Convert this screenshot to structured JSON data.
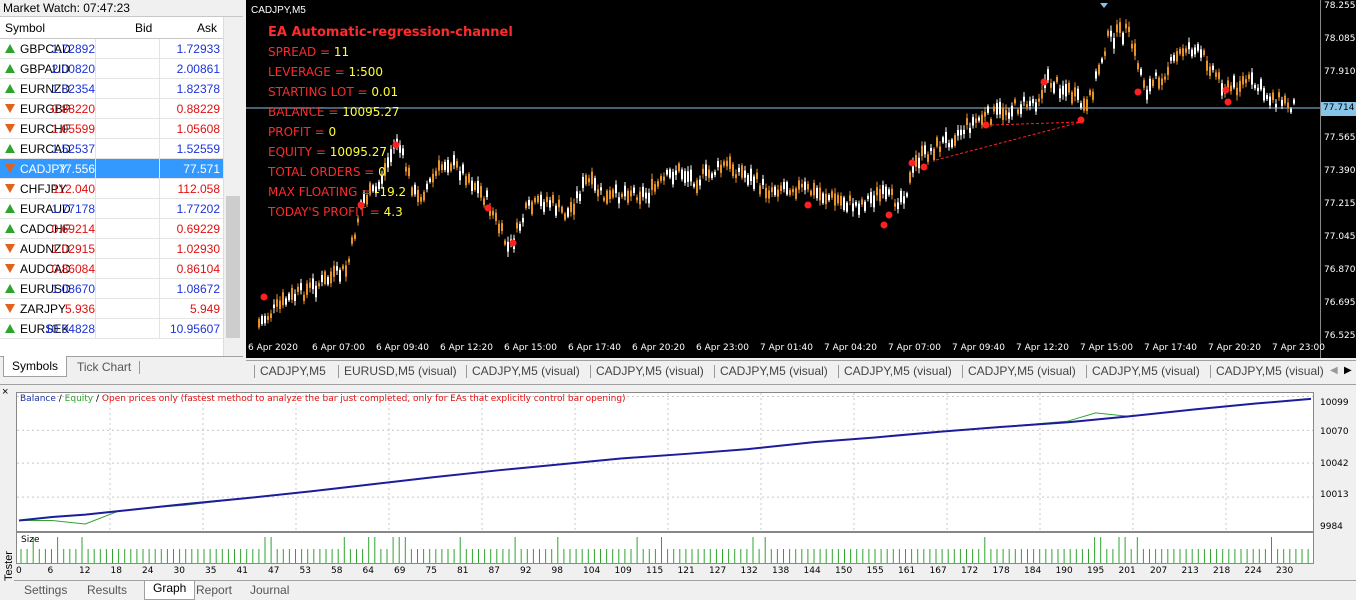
{
  "market_watch": {
    "title": "Market Watch: 07:47:23",
    "columns": [
      "Symbol",
      "Bid",
      "Ask"
    ],
    "rows": [
      {
        "symbol": "GBPCAD",
        "bid": "1.72892",
        "ask": "1.72933",
        "dir": "up",
        "color": "blue"
      },
      {
        "symbol": "GBPAUD",
        "bid": "2.00820",
        "ask": "2.00861",
        "dir": "up",
        "color": "blue"
      },
      {
        "symbol": "EURNZD",
        "bid": "1.82354",
        "ask": "1.82378",
        "dir": "up",
        "color": "blue"
      },
      {
        "symbol": "EURGBP",
        "bid": "0.88220",
        "ask": "0.88229",
        "dir": "down",
        "color": "red"
      },
      {
        "symbol": "EURCHF",
        "bid": "1.05599",
        "ask": "1.05608",
        "dir": "down",
        "color": "red"
      },
      {
        "symbol": "EURCAD",
        "bid": "1.52537",
        "ask": "1.52559",
        "dir": "up",
        "color": "blue"
      },
      {
        "symbol": "CADJPY",
        "bid": "77.556",
        "ask": "77.571",
        "dir": "down",
        "color": "sel"
      },
      {
        "symbol": "CHFJPY",
        "bid": "112.040",
        "ask": "112.058",
        "dir": "down",
        "color": "red"
      },
      {
        "symbol": "EURAUD",
        "bid": "1.77178",
        "ask": "1.77202",
        "dir": "up",
        "color": "blue"
      },
      {
        "symbol": "CADCHF",
        "bid": "0.69214",
        "ask": "0.69229",
        "dir": "up",
        "color": "red"
      },
      {
        "symbol": "AUDNZD",
        "bid": "1.02915",
        "ask": "1.02930",
        "dir": "down",
        "color": "red"
      },
      {
        "symbol": "AUDCAD",
        "bid": "0.86084",
        "ask": "0.86104",
        "dir": "down",
        "color": "red"
      },
      {
        "symbol": "EURUSD",
        "bid": "1.08670",
        "ask": "1.08672",
        "dir": "up",
        "color": "blue"
      },
      {
        "symbol": "ZARJPY",
        "bid": "5.936",
        "ask": "5.949",
        "dir": "down",
        "color": "red"
      },
      {
        "symbol": "EURSEK",
        "bid": "10.94828",
        "ask": "10.95607",
        "dir": "up",
        "color": "blue"
      }
    ],
    "tabs": [
      "Symbols",
      "Tick Chart"
    ]
  },
  "chart": {
    "label": "CADJPY,M5",
    "ea_title": "EA Automatic-regression-channel",
    "info": [
      {
        "k": "SPREAD = ",
        "v": "11"
      },
      {
        "k": "LEVERAGE = ",
        "v": "1:500"
      },
      {
        "k": "STARTING LOT = ",
        "v": "0.01"
      },
      {
        "k": "BALANCE = ",
        "v": "10095.27"
      },
      {
        "k": "PROFIT = ",
        "v": "0"
      },
      {
        "k": "EQUITY = ",
        "v": "10095.27"
      },
      {
        "k": "TOTAL ORDERS = ",
        "v": "0"
      },
      {
        "k": "MAX FLOATING = ",
        "v": "-19.2"
      },
      {
        "k": "TODAY'S PROFIT = ",
        "v": "4.3"
      }
    ],
    "price_ticks": [
      "78.255",
      "78.085",
      "77.910",
      "77.714",
      "77.565",
      "77.390",
      "77.215",
      "77.045",
      "76.870",
      "76.695",
      "76.525"
    ],
    "current_price": "77.714",
    "time_ticks": [
      "6 Apr 2020",
      "6 Apr 07:00",
      "6 Apr 09:40",
      "6 Apr 12:20",
      "6 Apr 15:00",
      "6 Apr 17:40",
      "6 Apr 20:20",
      "6 Apr 23:00",
      "7 Apr 01:40",
      "7 Apr 04:20",
      "7 Apr 07:00",
      "7 Apr 09:40",
      "7 Apr 12:20",
      "7 Apr 15:00",
      "7 Apr 17:40",
      "7 Apr 20:20",
      "7 Apr 23:00"
    ],
    "tabs": [
      "CADJPY,M5",
      "EURUSD,M5 (visual)",
      "CADJPY,M5 (visual)",
      "CADJPY,M5 (visual)",
      "CADJPY,M5 (visual)",
      "CADJPY,M5 (visual)",
      "CADJPY,M5 (visual)",
      "CADJPY,M5 (visual)",
      "CADJPY,M5 (visual)"
    ],
    "colors": {
      "bull": "#ffffff",
      "bear": "#e8922a",
      "marker": "#ff2020",
      "grid": "#87c5e8"
    }
  },
  "tester": {
    "side_label": "Tester",
    "close_label": "×",
    "legend": {
      "balance": "Balance",
      "sep1": " / ",
      "equity": "Equity",
      "sep2": " / ",
      "mode": "Open prices only (fastest method to analyze the bar just completed, only for EAs that explicitly control bar opening)"
    },
    "size_label": "Size",
    "y_ticks": [
      "10099",
      "10070",
      "10042",
      "10013",
      "9984"
    ],
    "x_ticks": [
      "0",
      "6",
      "12",
      "18",
      "24",
      "30",
      "35",
      "41",
      "47",
      "53",
      "58",
      "64",
      "69",
      "75",
      "81",
      "87",
      "92",
      "98",
      "104",
      "109",
      "115",
      "121",
      "127",
      "132",
      "138",
      "144",
      "150",
      "155",
      "161",
      "167",
      "172",
      "178",
      "184",
      "190",
      "195",
      "201",
      "207",
      "213",
      "218",
      "224",
      "230"
    ],
    "tabs": [
      "Settings",
      "Results",
      "Graph",
      "Report",
      "Journal"
    ],
    "active_tab": "Graph"
  },
  "chart_data": {
    "type": "line",
    "title": "",
    "xlabel": "",
    "ylabel": "",
    "series": [
      {
        "name": "Balance",
        "x": [
          0,
          6,
          12,
          18,
          24,
          30,
          41,
          53,
          64,
          75,
          87,
          98,
          109,
          121,
          132,
          144,
          155,
          167,
          178,
          190,
          201,
          213,
          224,
          234
        ],
        "values": [
          9993,
          9996,
          9998,
          10001,
          10004,
          10007,
          10012,
          10018,
          10024,
          10030,
          10036,
          10041,
          10046,
          10050,
          10054,
          10060,
          10064,
          10069,
          10073,
          10077,
          10082,
          10088,
          10093,
          10097
        ]
      },
      {
        "name": "Equity",
        "x": [
          0,
          6,
          12,
          18,
          24,
          30,
          41,
          53,
          64,
          75,
          87,
          98,
          109,
          121,
          132,
          144,
          155,
          167,
          178,
          190,
          195,
          201,
          213,
          224,
          234
        ],
        "values": [
          9993,
          9993,
          9990,
          10001,
          10004,
          10006,
          10012,
          10018,
          10024,
          10030,
          10036,
          10041,
          10046,
          10050,
          10054,
          10060,
          10064,
          10069,
          10073,
          10078,
          10085,
          10082,
          10088,
          10093,
          10097
        ]
      }
    ],
    "ylim": [
      9984,
      10102
    ],
    "xlim": [
      0,
      234
    ]
  }
}
